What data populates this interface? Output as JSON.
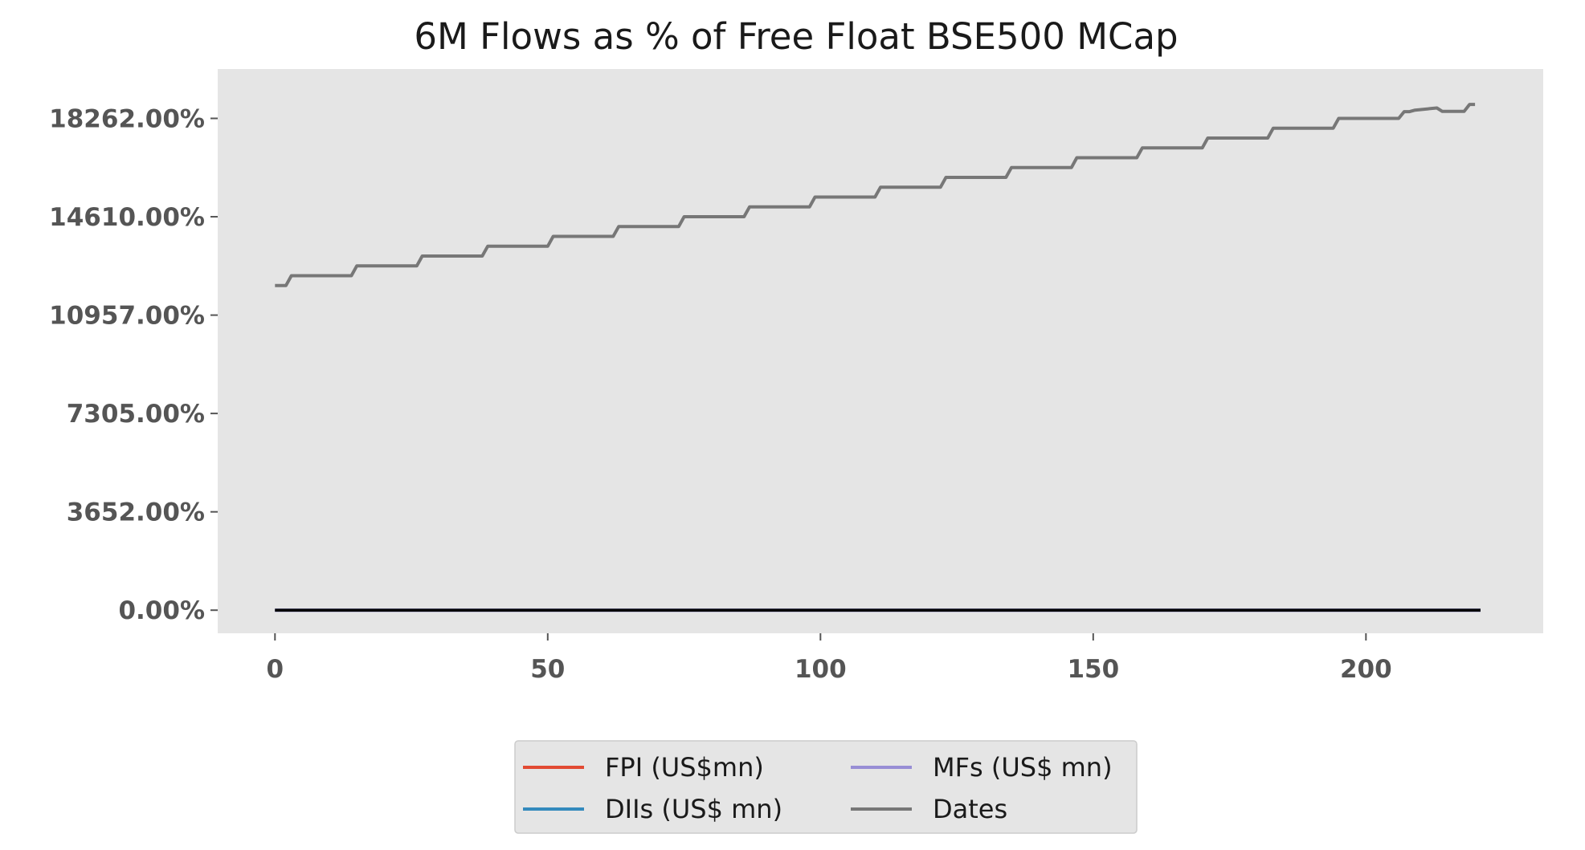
{
  "chart_data": {
    "type": "line",
    "title": "6M Flows as % of Free Float BSE500 MCap",
    "xlabel": "",
    "ylabel": "",
    "xlim": [
      -10.5,
      232.5
    ],
    "ylim": [
      -858,
      20095
    ],
    "x_ticks": [
      0,
      50,
      100,
      150,
      200
    ],
    "y_ticks": [
      {
        "value": 0,
        "label": "0.00%"
      },
      {
        "value": 3652,
        "label": "3652.00%"
      },
      {
        "value": 7305,
        "label": "7305.00%"
      },
      {
        "value": 10957,
        "label": "10957.00%"
      },
      {
        "value": 14610,
        "label": "14610.00%"
      },
      {
        "value": 18262,
        "label": "18262.00%"
      }
    ],
    "grid": false,
    "background": "#e5e5e5",
    "legend": {
      "position": "bottom-center",
      "columns": 2
    },
    "series": [
      {
        "name": "FPI (US$mn)",
        "color": "#e24a33",
        "points": [
          [
            0,
            0
          ],
          [
            221,
            0
          ]
        ]
      },
      {
        "name": "DIIs (US$ mn)",
        "color": "#348abd",
        "points": [
          [
            0,
            0
          ],
          [
            221,
            0
          ]
        ]
      },
      {
        "name": "MFs (US$ mn)",
        "color": "#988ed5",
        "points": [
          [
            0,
            0
          ],
          [
            221,
            0
          ]
        ]
      },
      {
        "name": "Dates",
        "color": "#777777",
        "points": [
          [
            0,
            12054
          ],
          [
            2,
            12054
          ],
          [
            3,
            12419
          ],
          [
            14,
            12419
          ],
          [
            15,
            12784
          ],
          [
            26,
            12784
          ],
          [
            27,
            13149
          ],
          [
            38,
            13149
          ],
          [
            39,
            13515
          ],
          [
            50,
            13515
          ],
          [
            51,
            13880
          ],
          [
            62,
            13880
          ],
          [
            63,
            14245
          ],
          [
            74,
            14245
          ],
          [
            75,
            14610
          ],
          [
            86,
            14610
          ],
          [
            87,
            14975
          ],
          [
            98,
            14975
          ],
          [
            99,
            15340
          ],
          [
            110,
            15340
          ],
          [
            111,
            15706
          ],
          [
            122,
            15706
          ],
          [
            123,
            16071
          ],
          [
            134,
            16071
          ],
          [
            135,
            16436
          ],
          [
            146,
            16436
          ],
          [
            147,
            16801
          ],
          [
            158,
            16801
          ],
          [
            159,
            17166
          ],
          [
            170,
            17166
          ],
          [
            171,
            17532
          ],
          [
            182,
            17532
          ],
          [
            183,
            17897
          ],
          [
            194,
            17897
          ],
          [
            195,
            18262
          ],
          [
            206,
            18262
          ],
          [
            207,
            18511
          ],
          [
            208,
            18511
          ],
          [
            209,
            18570
          ],
          [
            213,
            18650
          ],
          [
            214,
            18520
          ],
          [
            218,
            18520
          ],
          [
            219,
            18780
          ],
          [
            220,
            18780
          ]
        ]
      },
      {
        "name": "",
        "color": "#000000",
        "points": [
          [
            0,
            0
          ],
          [
            221,
            0
          ]
        ]
      }
    ]
  }
}
